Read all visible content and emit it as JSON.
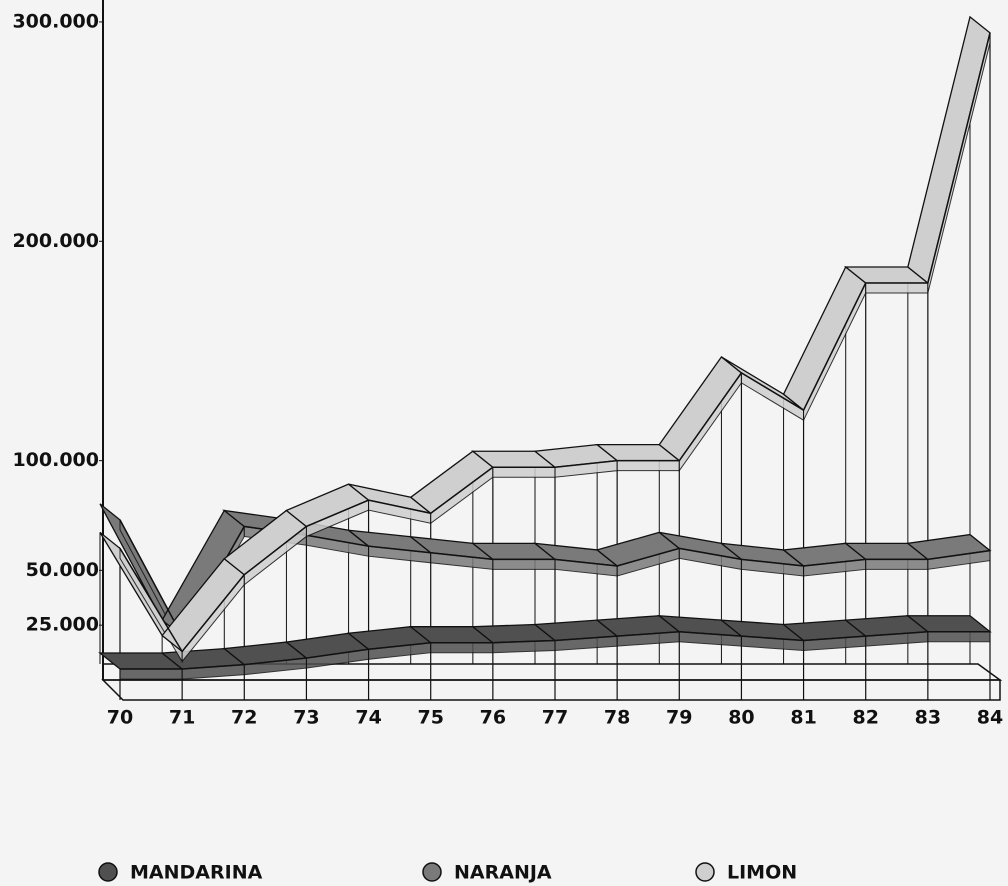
{
  "chart_data": {
    "type": "ribbon3d",
    "categories": [
      "70",
      "71",
      "72",
      "73",
      "74",
      "75",
      "76",
      "77",
      "78",
      "79",
      "80",
      "81",
      "82",
      "83",
      "84"
    ],
    "series": [
      {
        "name": "MANDARINA",
        "color": "#505050",
        "values": [
          5000,
          5000,
          7000,
          10000,
          14000,
          17000,
          17000,
          18000,
          20000,
          22000,
          20000,
          18000,
          20000,
          22000,
          22000
        ]
      },
      {
        "name": "NARANJA",
        "color": "#7a7a7a",
        "values": [
          73000,
          20000,
          70000,
          66000,
          61000,
          58000,
          55000,
          55000,
          52000,
          60000,
          55000,
          52000,
          55000,
          55000,
          59000
        ]
      },
      {
        "name": "LIMON",
        "color": "#cfcfcf",
        "values": [
          60000,
          13000,
          48000,
          70000,
          82000,
          76000,
          97000,
          97000,
          100000,
          100000,
          140000,
          123000,
          181000,
          181000,
          295000
        ]
      }
    ],
    "ylim": [
      0,
      310000
    ],
    "yticks": [
      {
        "value": 25000,
        "label": "25.000"
      },
      {
        "value": 50000,
        "label": "50.000"
      },
      {
        "value": 100000,
        "label": "100.000"
      },
      {
        "value": 200000,
        "label": "200.000"
      },
      {
        "value": 300000,
        "label": "300.000"
      }
    ]
  }
}
